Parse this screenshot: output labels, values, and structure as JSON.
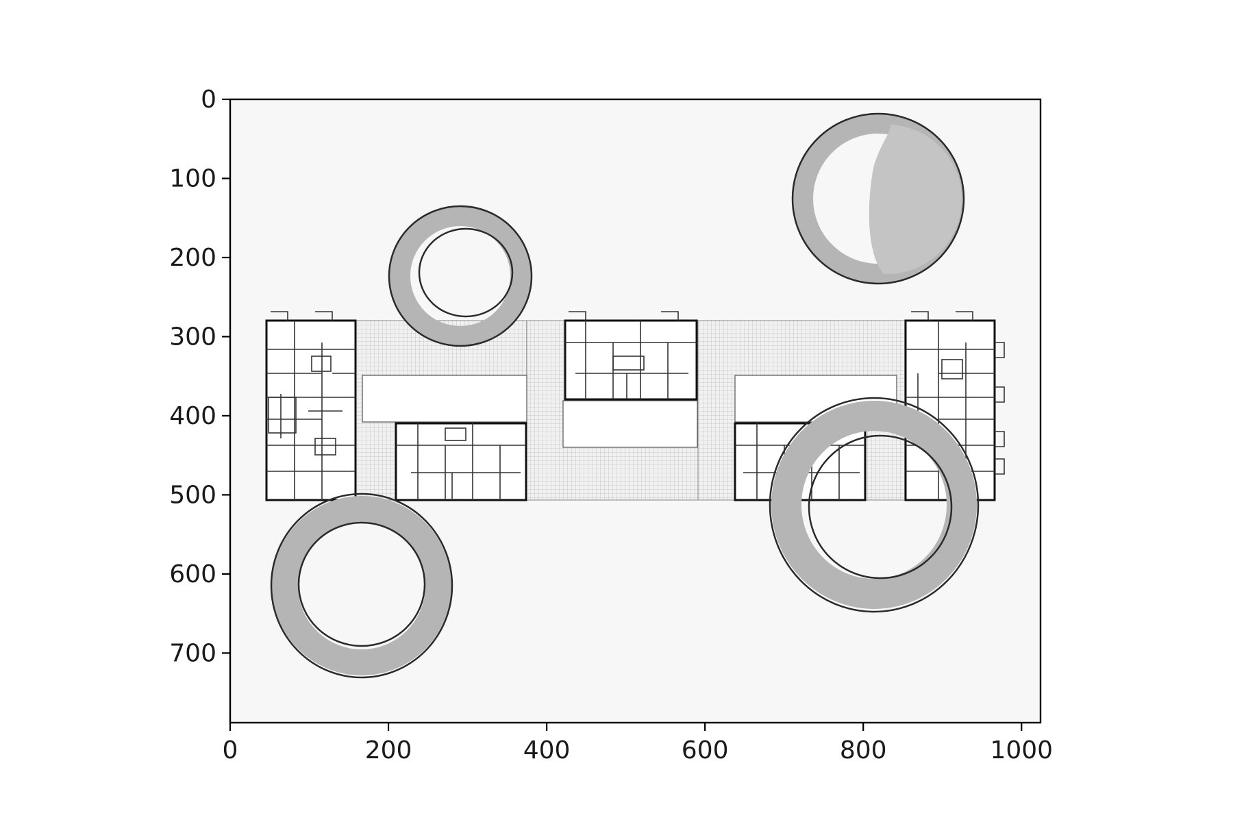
{
  "image_plot": {
    "type": "image",
    "x_ticks": [
      "0",
      "200",
      "400",
      "600",
      "800",
      "1000"
    ],
    "y_ticks": [
      "0",
      "100",
      "200",
      "300",
      "400",
      "500",
      "600",
      "700"
    ],
    "x_tick_values": [
      0,
      200,
      400,
      600,
      800,
      1000
    ],
    "y_tick_values": [
      0,
      100,
      200,
      300,
      400,
      500,
      600,
      700
    ],
    "xlim": [
      0,
      1024
    ],
    "ylim": [
      788,
      0
    ],
    "y_inverted": true,
    "content": {
      "subject": "architectural floor plan",
      "overlay": "coffee-ring stains",
      "stain_count": 4,
      "colors": {
        "background": "#f7f7f7",
        "lines": "#111111",
        "stain": "#b5b5b5"
      }
    }
  }
}
